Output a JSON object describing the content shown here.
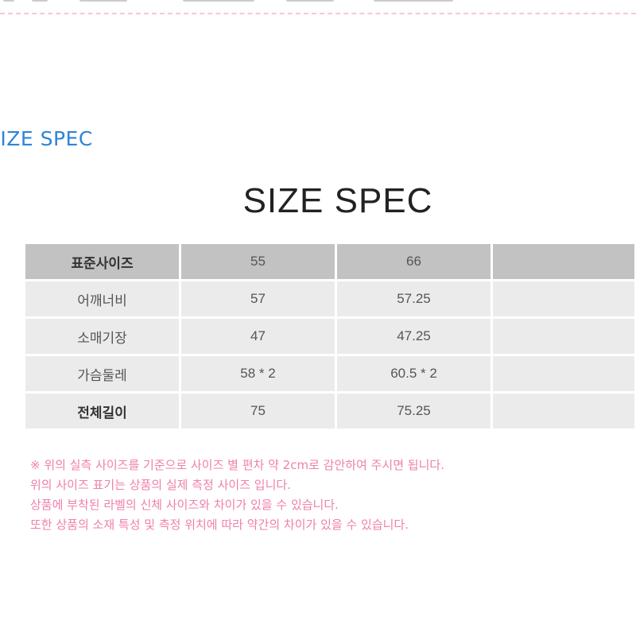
{
  "section_label": "SIZE SPEC",
  "title": "SIZE SPEC",
  "table": {
    "header": [
      "표준사이즈",
      "55",
      "66",
      ""
    ],
    "rows": [
      [
        "어깨너비",
        "57",
        "57.25",
        ""
      ],
      [
        "소매기장",
        "47",
        "47.25",
        ""
      ],
      [
        "가슴둘레",
        "58 * 2",
        "60.5 * 2",
        ""
      ],
      [
        "전체길이",
        "75",
        "75.25",
        ""
      ]
    ]
  },
  "notes": [
    "※ 위의 실측 사이즈를 기준으로 사이즈 별 편차 약 2cm로 감안하여 주시면 됩니다.",
    "위의 사이즈 표기는 상품의 실제 측정 사이즈 입니다.",
    "상품에 부착된 라벨의 신체 사이즈와 차이가 있을 수 있습니다.",
    "또한 상품의 소재 특성 및 측정 위치에 따라 약간의 차이가 있을 수 있습니다."
  ],
  "colors": {
    "accent_blue": "#2f84d6",
    "note_pink": "#f07fab",
    "header_gray": "#c2c2c2",
    "row_gray": "#ebebeb"
  }
}
